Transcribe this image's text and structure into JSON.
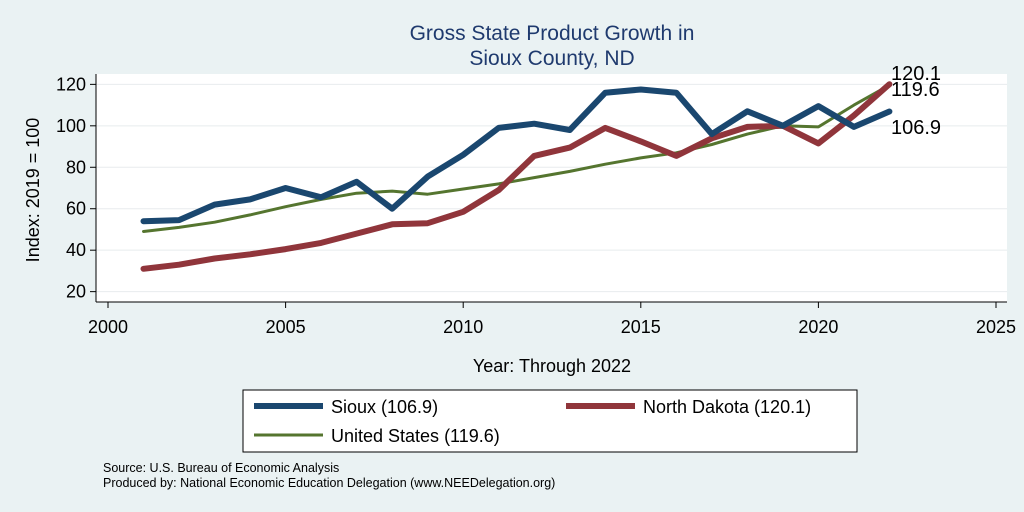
{
  "chart_data": {
    "type": "line",
    "title": [
      "Gross State Product Growth in",
      "Sioux County, ND"
    ],
    "xlabel": "Year: Through 2022",
    "ylabel": "Index: 2019 = 100",
    "xlim": [
      2000,
      2025
    ],
    "ylim": [
      15,
      125
    ],
    "x_ticks": [
      "2000",
      "2005",
      "2010",
      "2015",
      "2020",
      "2025"
    ],
    "y_ticks": [
      "20",
      "40",
      "60",
      "80",
      "100",
      "120"
    ],
    "grid": true,
    "x": [
      2001,
      2002,
      2003,
      2004,
      2005,
      2006,
      2007,
      2008,
      2009,
      2010,
      2011,
      2012,
      2013,
      2014,
      2015,
      2016,
      2017,
      2018,
      2019,
      2020,
      2021,
      2022
    ],
    "series": [
      {
        "name": "Sioux",
        "legend": "Sioux  (106.9)",
        "end_label": "106.9",
        "color": "#1a476f",
        "values": [
          54,
          54.5,
          62,
          64.5,
          70,
          65.5,
          73,
          60,
          75.5,
          86,
          99,
          101,
          98,
          116,
          117.5,
          116,
          96,
          107,
          100,
          109.5,
          99.5,
          106.9
        ]
      },
      {
        "name": "North Dakota",
        "legend": "North Dakota (120.1)",
        "end_label": "120.1",
        "color": "#90353b",
        "values": [
          31,
          33,
          36,
          38,
          40.5,
          43.5,
          48,
          52.5,
          53,
          58.5,
          69,
          85.5,
          89.5,
          99,
          92.5,
          85.5,
          94,
          99.5,
          100,
          91.5,
          105,
          120.1
        ]
      },
      {
        "name": "United States",
        "legend": "United States (119.6)",
        "end_label": "119.6",
        "color": "#55752f",
        "values": [
          49,
          51,
          53.5,
          57,
          61,
          64.5,
          67.5,
          68.5,
          67,
          69.5,
          72,
          75,
          78,
          81.5,
          84.5,
          87,
          91,
          96,
          100,
          99.5,
          110,
          119.6
        ]
      }
    ]
  },
  "footnotes": {
    "source": "Source: U.S. Bureau of Economic Analysis",
    "produced": "Produced by: National Economic Education Delegation (www.NEEDelegation.org)"
  }
}
